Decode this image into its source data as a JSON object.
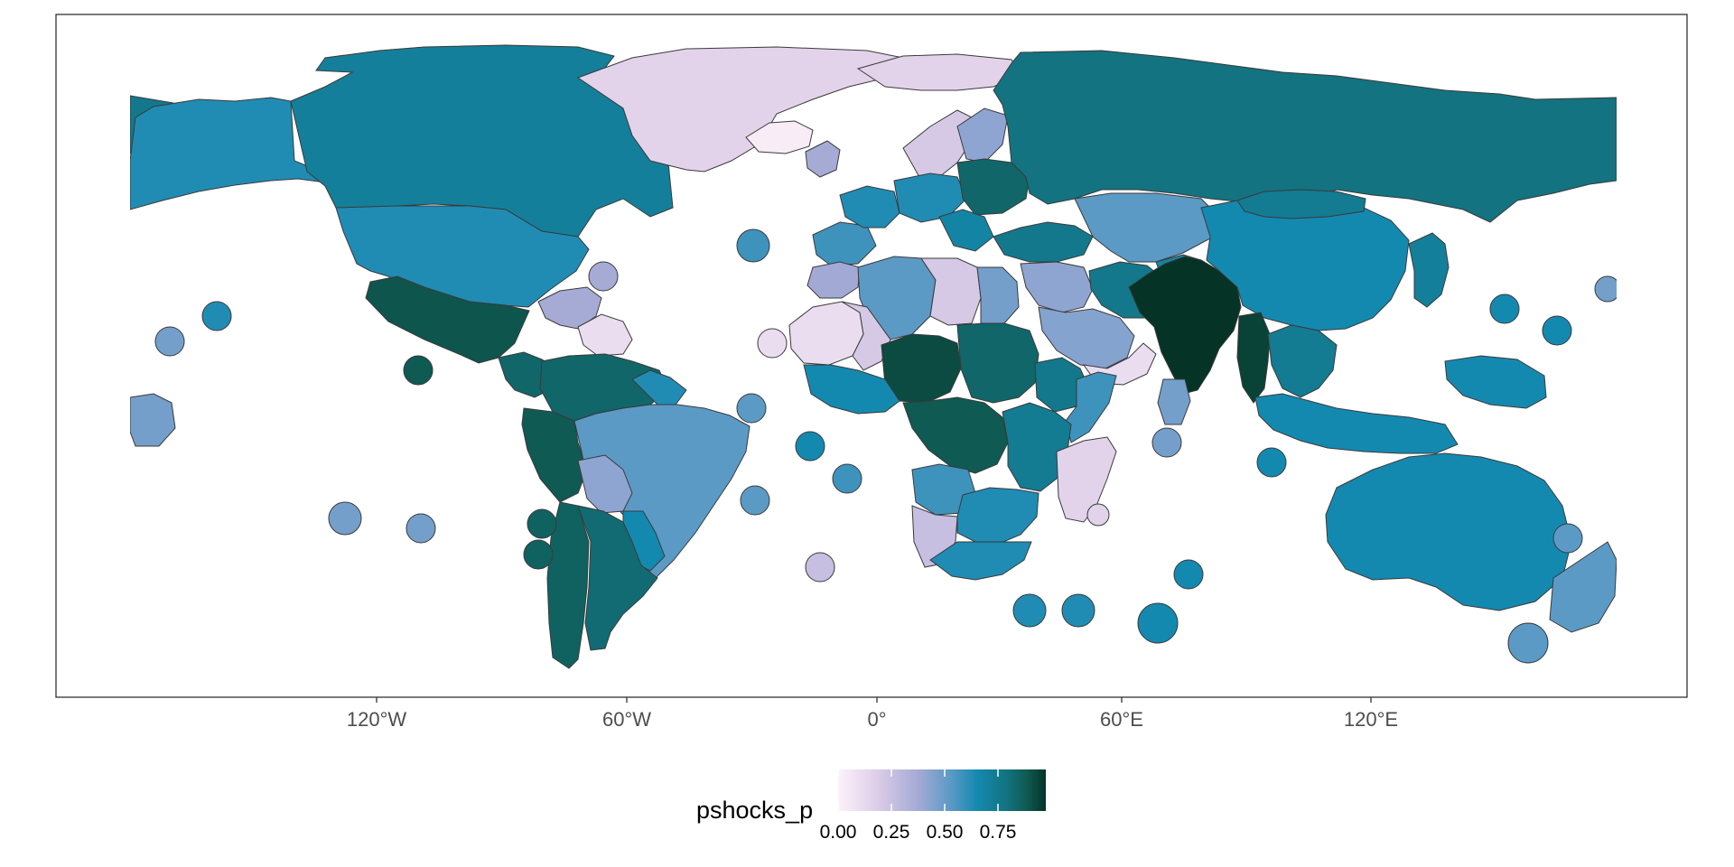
{
  "chart_data": {
    "type": "choropleth-map",
    "projection": "equirectangular world, longitude -180 to 180",
    "x_axis": {
      "ticks": [
        {
          "lon": -120,
          "label": "120°W"
        },
        {
          "lon": -60,
          "label": "60°W"
        },
        {
          "lon": 0,
          "label": "0°"
        },
        {
          "lon": 60,
          "label": "60°E"
        },
        {
          "lon": 120,
          "label": "120°E"
        }
      ]
    },
    "legend": {
      "title": "pshocks_p",
      "position": "bottom",
      "range": [
        0.0,
        0.93
      ],
      "ticks": [
        {
          "value": 0.0,
          "label": "0.00"
        },
        {
          "value": 0.25,
          "label": "0.25"
        },
        {
          "value": 0.5,
          "label": "0.50"
        },
        {
          "value": 0.75,
          "label": "0.75"
        }
      ],
      "gradient_stops": [
        {
          "value": 0.0,
          "color": "#fdf2fa"
        },
        {
          "value": 0.18,
          "color": "#dccde8"
        },
        {
          "value": 0.36,
          "color": "#a3a9d5"
        },
        {
          "value": 0.5,
          "color": "#5c9ac6"
        },
        {
          "value": 0.62,
          "color": "#1489b0"
        },
        {
          "value": 0.75,
          "color": "#137380"
        },
        {
          "value": 0.85,
          "color": "#0f5a52"
        },
        {
          "value": 0.93,
          "color": "#053326"
        }
      ]
    },
    "regions": [
      {
        "id": "alaska-west",
        "value": 0.72
      },
      {
        "id": "alaska",
        "value": 0.6
      },
      {
        "id": "canada",
        "value": 0.68
      },
      {
        "id": "usa",
        "value": 0.6
      },
      {
        "id": "mexico",
        "value": 0.86
      },
      {
        "id": "greenland",
        "value": 0.15
      },
      {
        "id": "iceland",
        "value": 0.03
      },
      {
        "id": "svalbard",
        "value": 0.15
      },
      {
        "id": "central-america",
        "value": 0.8
      },
      {
        "id": "caribbean-north",
        "value": 0.35
      },
      {
        "id": "caribbean-east",
        "value": 0.1
      },
      {
        "id": "colombia-venezuela",
        "value": 0.8
      },
      {
        "id": "guianas",
        "value": 0.6
      },
      {
        "id": "ecuador-peru",
        "value": 0.85
      },
      {
        "id": "brazil",
        "value": 0.5
      },
      {
        "id": "bolivia",
        "value": 0.4
      },
      {
        "id": "paraguay-uruguay",
        "value": 0.62
      },
      {
        "id": "chile-argentina",
        "value": 0.82
      },
      {
        "id": "argentina",
        "value": 0.78
      },
      {
        "id": "scandinavia",
        "value": 0.2
      },
      {
        "id": "finland",
        "value": 0.4
      },
      {
        "id": "uk-ireland",
        "value": 0.35
      },
      {
        "id": "iberia",
        "value": 0.55
      },
      {
        "id": "france",
        "value": 0.6
      },
      {
        "id": "central-europe",
        "value": 0.6
      },
      {
        "id": "eastern-europe",
        "value": 0.8
      },
      {
        "id": "balkans",
        "value": 0.65
      },
      {
        "id": "russia",
        "value": 0.75
      },
      {
        "id": "turkey-caucasus",
        "value": 0.72
      },
      {
        "id": "morocco",
        "value": 0.36
      },
      {
        "id": "algeria",
        "value": 0.5
      },
      {
        "id": "libya",
        "value": 0.2
      },
      {
        "id": "egypt",
        "value": 0.45
      },
      {
        "id": "west-sahel",
        "value": 0.1
      },
      {
        "id": "mali",
        "value": 0.2
      },
      {
        "id": "niger-nigeria",
        "value": 0.88
      },
      {
        "id": "chad-sudan",
        "value": 0.8
      },
      {
        "id": "ethiopia",
        "value": 0.72
      },
      {
        "id": "horn-somalia",
        "value": 0.55
      },
      {
        "id": "west-africa-coast",
        "value": 0.62
      },
      {
        "id": "central-africa",
        "value": 0.85
      },
      {
        "id": "east-africa",
        "value": 0.7
      },
      {
        "id": "angola",
        "value": 0.55
      },
      {
        "id": "namibia",
        "value": 0.25
      },
      {
        "id": "southern-africa",
        "value": 0.6
      },
      {
        "id": "south-africa",
        "value": 0.6
      },
      {
        "id": "madagascar",
        "value": 0.15
      },
      {
        "id": "middle-east",
        "value": 0.4
      },
      {
        "id": "saudi-arabia",
        "value": 0.42
      },
      {
        "id": "yemen-oman",
        "value": 0.1
      },
      {
        "id": "iran",
        "value": 0.72
      },
      {
        "id": "central-asia",
        "value": 0.5
      },
      {
        "id": "afghanistan-pakistan",
        "value": 0.65
      },
      {
        "id": "india",
        "value": 0.93
      },
      {
        "id": "sri-lanka",
        "value": 0.45
      },
      {
        "id": "china",
        "value": 0.62
      },
      {
        "id": "mongolia",
        "value": 0.7
      },
      {
        "id": "korea-japan",
        "value": 0.68
      },
      {
        "id": "myanmar",
        "value": 0.9
      },
      {
        "id": "indochina",
        "value": 0.7
      },
      {
        "id": "indonesia",
        "value": 0.62
      },
      {
        "id": "new-guinea",
        "value": 0.62
      },
      {
        "id": "australia",
        "value": 0.62
      },
      {
        "id": "new-zealand",
        "value": 0.5
      },
      {
        "id": "pacific-islands",
        "value": 0.45
      }
    ]
  }
}
